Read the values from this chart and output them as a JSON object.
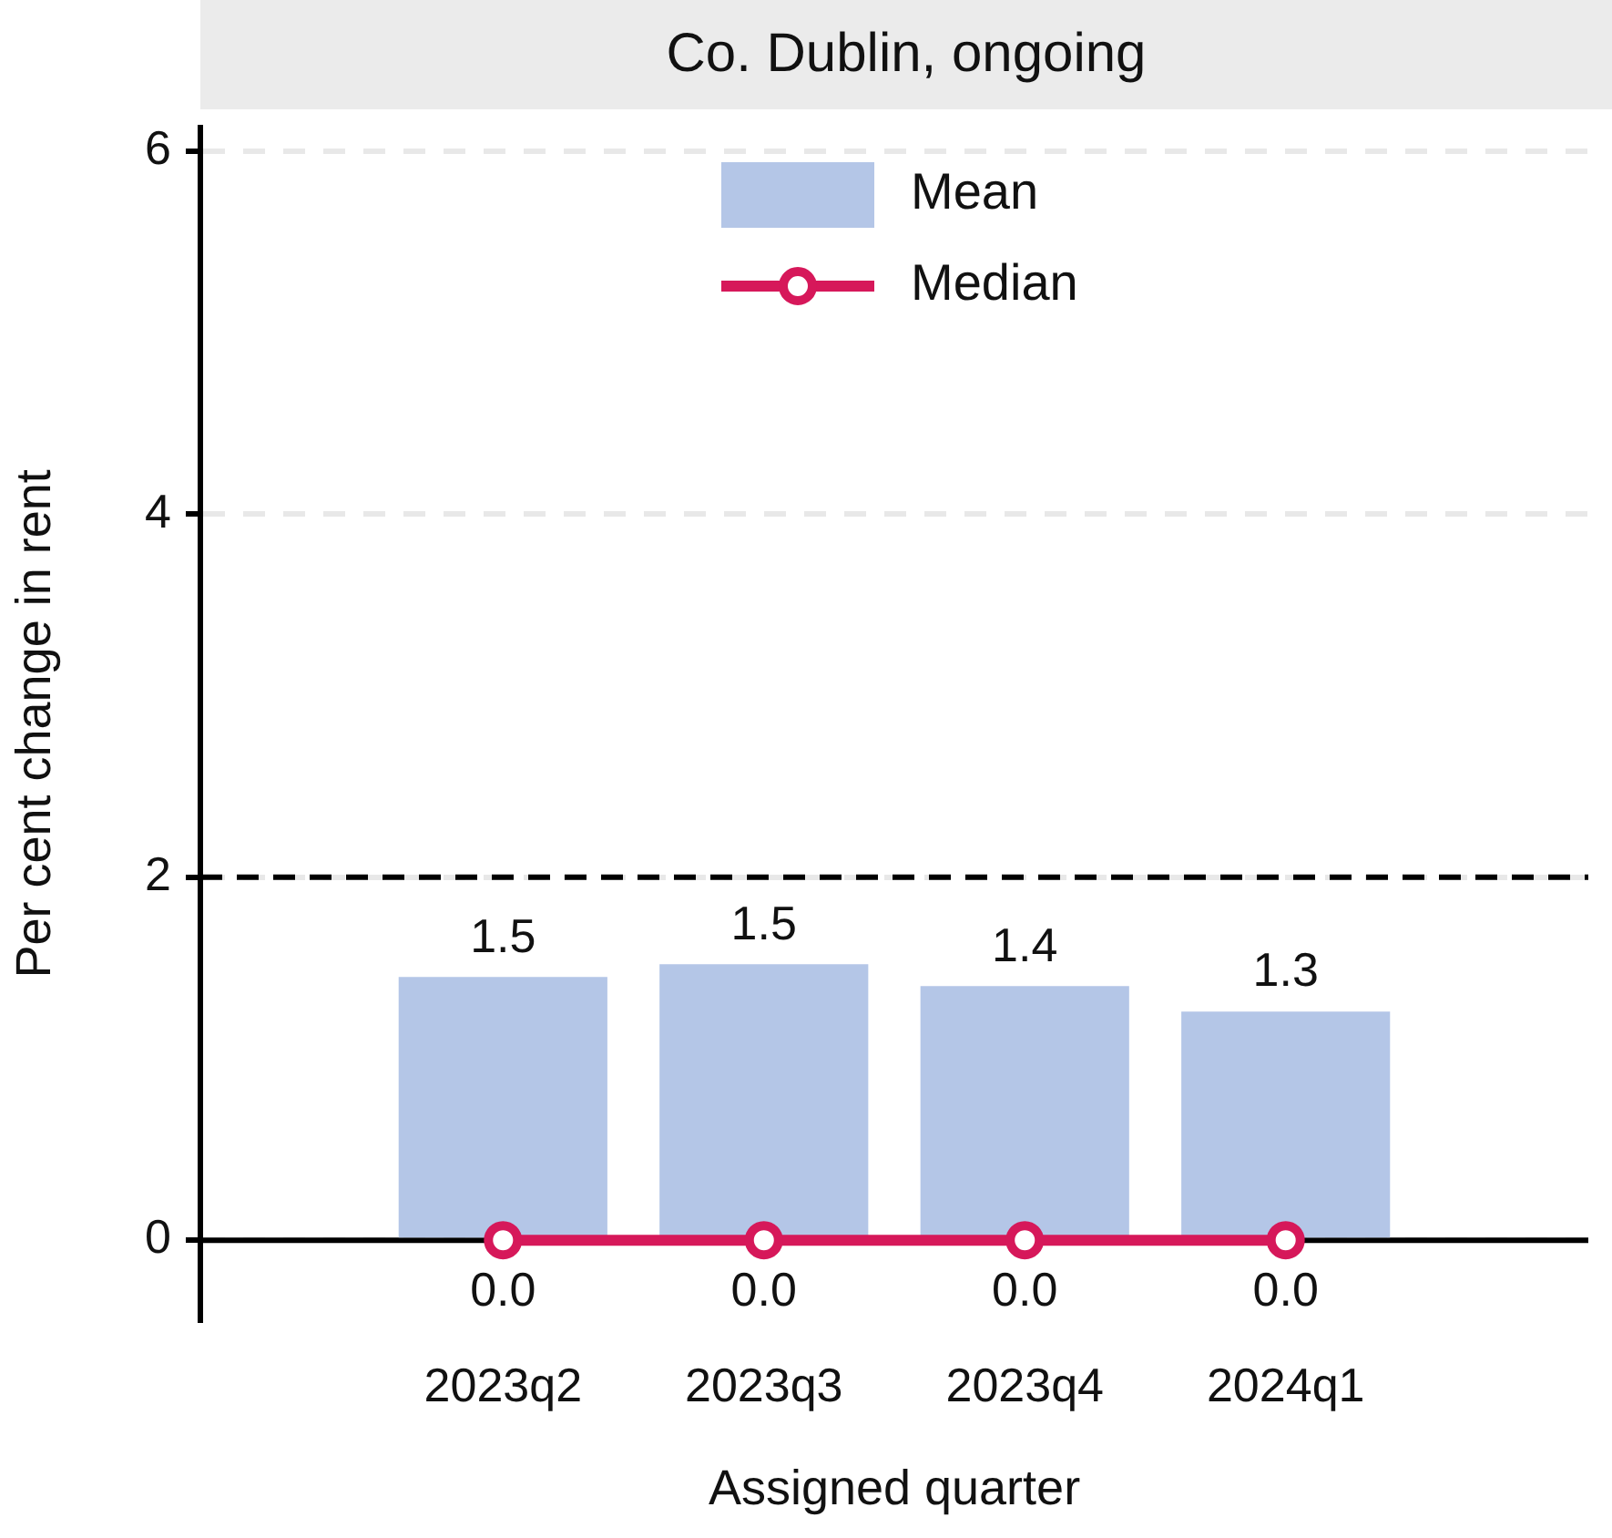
{
  "chart_data": {
    "type": "bar",
    "title": "Co. Dublin, ongoing",
    "xlabel": "Assigned quarter",
    "ylabel": "Per cent change in rent",
    "categories": [
      "2023q2",
      "2023q3",
      "2023q4",
      "2024q1"
    ],
    "series": [
      {
        "name": "Mean",
        "type": "bar",
        "color": "#b4c6e7",
        "values": [
          1.45,
          1.52,
          1.4,
          1.26
        ],
        "value_labels": [
          "1.5",
          "1.5",
          "1.4",
          "1.3"
        ]
      },
      {
        "name": "Median",
        "type": "line",
        "color": "#d6185a",
        "values": [
          0,
          0,
          0,
          0
        ],
        "value_labels": [
          "0.0",
          "0.0",
          "0.0",
          "0.0"
        ]
      }
    ],
    "ylim": [
      -0.44,
      6.13
    ],
    "yticks": [
      0,
      2,
      4,
      6
    ],
    "grid": "y",
    "legend": "top",
    "marker": "circle",
    "ref_lines": [
      {
        "axis": "y",
        "value": 2,
        "line_style": "dashed",
        "color": "#000000"
      }
    ]
  }
}
